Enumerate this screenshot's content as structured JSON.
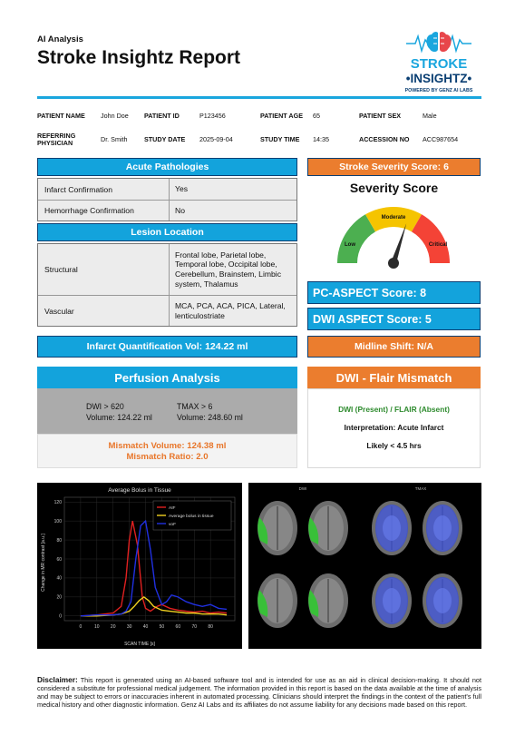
{
  "header": {
    "section_label": "AI Analysis",
    "title": "Stroke Insightz Report",
    "logo": {
      "line1": "STROKE",
      "line2": "•INSIGHTZ•",
      "line3": "POWERED BY GENZ AI LABS",
      "icon": "brain-circuit-icon",
      "accent": "#1aa6de",
      "dark": "#0a3f73"
    }
  },
  "patient": {
    "name_label": "PATIENT NAME",
    "name": "John Doe",
    "id_label": "PATIENT ID",
    "id": "P123456",
    "age_label": "PATIENT AGE",
    "age": "65",
    "sex_label": "PATIENT SEX",
    "sex": "Male",
    "physician_label": "REFERRING PHYSICIAN",
    "physician": "Dr. Smith",
    "study_date_label": "STUDY DATE",
    "study_date": "2025-09-04",
    "study_time_label": "STUDY TIME",
    "study_time": "14:35",
    "accession_label": "ACCESSION NO",
    "accession": "ACC987654"
  },
  "acute": {
    "title": "Acute Pathologies",
    "rows": [
      {
        "label": "Infarct Confirmation",
        "value": "Yes"
      },
      {
        "label": "Hemorrhage Confirmation",
        "value": "No"
      }
    ]
  },
  "lesion": {
    "title": "Lesion Location",
    "rows": [
      {
        "label": "Structural",
        "value": "Frontal lobe, Parietal lobe, Temporal lobe, Occipital lobe, Cerebellum, Brainstem, Limbic system, Thalamus"
      },
      {
        "label": "Vascular",
        "value": "MCA, PCA, ACA, PICA, Lateral, lenticulostriate"
      }
    ]
  },
  "severity": {
    "bar": "Stroke Severity Score: 6",
    "title": "Severity Score",
    "low": "Low",
    "moderate": "Moderate",
    "critical": "Critical",
    "score": 6,
    "max": 10,
    "colors": {
      "low": "#4caf50",
      "moderate": "#f5c400",
      "critical": "#f44336"
    }
  },
  "scores": {
    "pc_aspect": "PC-ASPECT Score: 8",
    "dwi_aspect": "DWI ASPECT Score: 5"
  },
  "infarct_bar": "Infarct Quantification Vol: 124.22 ml",
  "midline_bar": "Midline Shift: N/A",
  "perfusion": {
    "title": "Perfusion Analysis",
    "dwi_label": "DWI > 620",
    "dwi_volume": "Volume: 124.22 ml",
    "tmax_label": "TMAX > 6",
    "tmax_volume": "Volume: 248.60 ml",
    "mismatch_volume": "Mismatch Volume: 124.38 ml",
    "mismatch_ratio": "Mismatch Ratio: 2.0"
  },
  "dwi_flair": {
    "title": "DWI - Flair Mismatch",
    "status": "DWI (Present) / FLAIR (Absent)",
    "interpretation": "Interpretation: Acute Infarct",
    "likely": "Likely < 4.5 hrs"
  },
  "chart_data": {
    "type": "line",
    "title": "Average Bolus in Tissue",
    "xlabel": "SCAN TIME [s]",
    "ylabel": "Change in MR contrast [a.u.]",
    "xlim": [
      -10,
      95
    ],
    "ylim": [
      -5,
      125
    ],
    "xticks": [
      0,
      10,
      20,
      30,
      40,
      50,
      60,
      70,
      80
    ],
    "yticks": [
      0,
      20,
      40,
      60,
      80,
      100,
      120
    ],
    "legend_position": "top-right",
    "series": [
      {
        "name": "AIF",
        "color": "#e02020",
        "x": [
          0,
          10,
          20,
          25,
          28,
          30,
          32,
          35,
          38,
          40,
          43,
          47,
          50,
          55,
          60,
          65,
          70,
          75,
          80,
          85,
          90
        ],
        "y": [
          0,
          1,
          3,
          10,
          40,
          80,
          100,
          75,
          20,
          8,
          5,
          10,
          12,
          8,
          6,
          5,
          4,
          5,
          3,
          4,
          3
        ]
      },
      {
        "name": "Average bolus in tissue",
        "color": "#f0d020",
        "x": [
          0,
          10,
          20,
          25,
          30,
          33,
          36,
          39,
          42,
          45,
          50,
          55,
          60,
          65,
          70,
          75,
          80,
          85,
          90
        ],
        "y": [
          0,
          0,
          1,
          2,
          5,
          10,
          16,
          20,
          16,
          10,
          6,
          5,
          4,
          3,
          3,
          2,
          2,
          2,
          1
        ]
      },
      {
        "name": "voF",
        "color": "#2030e0",
        "x": [
          0,
          10,
          20,
          25,
          28,
          31,
          34,
          37,
          40,
          43,
          46,
          50,
          53,
          56,
          60,
          65,
          70,
          75,
          80,
          85,
          90
        ],
        "y": [
          0,
          1,
          1,
          2,
          5,
          15,
          60,
          95,
          100,
          70,
          30,
          12,
          15,
          22,
          20,
          15,
          12,
          10,
          12,
          8,
          7
        ]
      }
    ]
  },
  "scan": {
    "dwi_label": "DWI",
    "tmax_label": "TMAX"
  },
  "disclaimer": {
    "label": "Disclaimer:",
    "text": "This report is generated using an AI-based software tool and is intended for use as an aid in clinical decision-making. It should not considered a substitute for professional medical judgement. The information provided in this report is based on the data available at the time of analysis and may be subject to errors or inaccuracies inherent in automated processing. Clinicians should interpret the findings in the context of the patient's full medical history and other diagnostic information. Genz AI Labs and its affiliates do not assume liability for any decisions made based on this report."
  }
}
